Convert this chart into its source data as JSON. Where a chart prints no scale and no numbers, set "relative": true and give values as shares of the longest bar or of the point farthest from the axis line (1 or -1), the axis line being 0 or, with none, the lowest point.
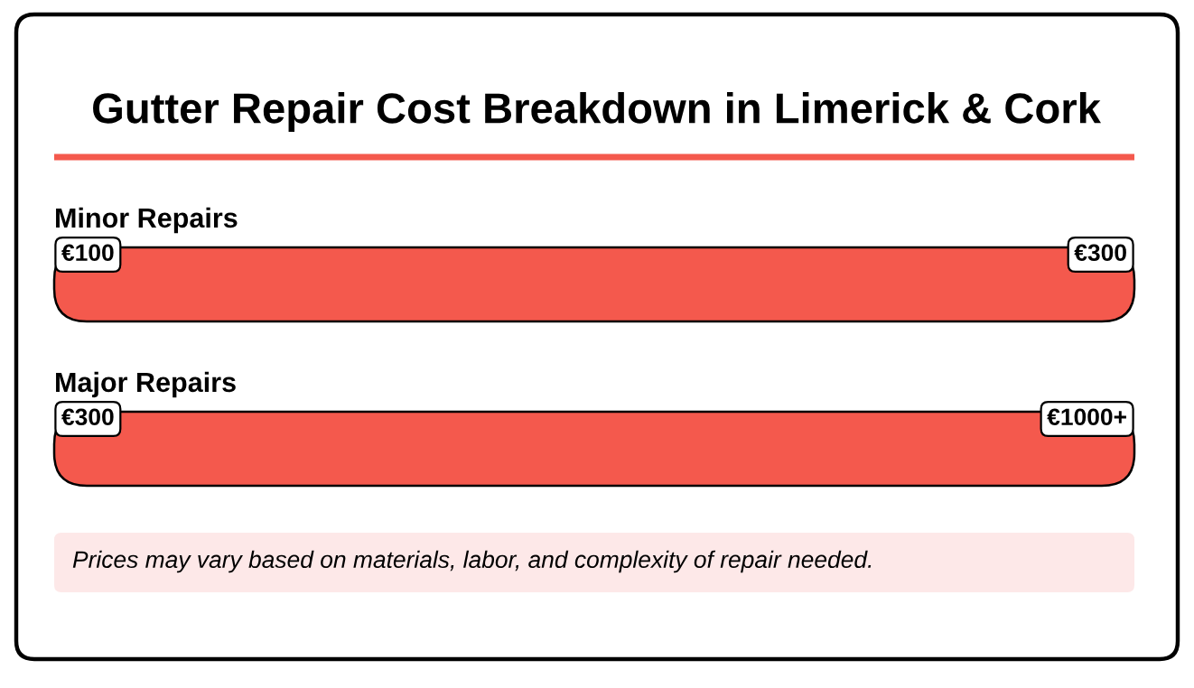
{
  "chart_data": {
    "type": "bar",
    "orientation": "horizontal",
    "relative": true,
    "title": "Gutter Repair Cost Breakdown in Limerick & Cork",
    "categories": [
      "Minor Repairs",
      "Major Repairs"
    ],
    "values": [
      1,
      1
    ],
    "colors": [
      "#f4594d",
      "#f4594d"
    ],
    "annotations": [
      "€100",
      "€300",
      "€300",
      "€1000+",
      "Prices may vary based on materials, labor, and complexity of repair needed."
    ]
  }
}
